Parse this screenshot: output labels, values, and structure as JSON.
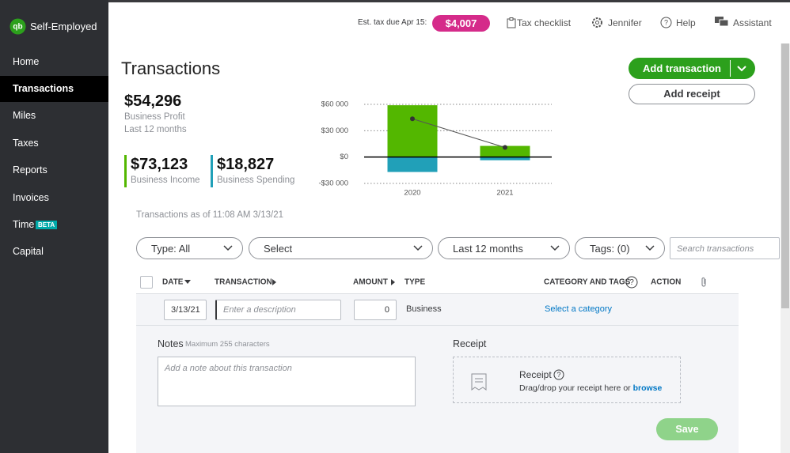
{
  "app": {
    "name": "Self-Employed",
    "nav": [
      "Home",
      "Transactions",
      "Miles",
      "Taxes",
      "Reports",
      "Invoices",
      "Time",
      "Capital"
    ],
    "badge": "BETA"
  },
  "topbar": {
    "tax_label": "Est. tax due Apr 15:",
    "tax_amount": "$4,007",
    "checklist": "Tax checklist",
    "user": "Jennifer",
    "help": "Help",
    "assistant": "Assistant"
  },
  "page": {
    "title": "Transactions",
    "add_transaction": "Add transaction",
    "add_receipt": "Add receipt"
  },
  "summary": {
    "profit": "$54,296",
    "period": "Last 12 months",
    "income": "$73,123",
    "spending": "$18,827"
  },
  "chart_data": {
    "type": "bar",
    "categories": [
      "2020",
      "2021"
    ],
    "series": [
      {
        "name": "Business Income",
        "color": "#53b700",
        "values": [
          59000,
          12700
        ]
      },
      {
        "name": "Business Spending",
        "color": "#21a0b8",
        "values": [
          -17000,
          -3600
        ]
      },
      {
        "name": "Business Profit",
        "type": "line",
        "color": "#555555",
        "values": [
          43600,
          10900
        ]
      }
    ],
    "ylim": [
      -30000,
      60000
    ],
    "yticks": [
      {
        "value": -30000,
        "label": "-$30 000"
      },
      {
        "value": 0,
        "label": "$0"
      },
      {
        "value": 30000,
        "label": "$30 000"
      },
      {
        "value": 60000,
        "label": "$60 000"
      }
    ],
    "grid": true
  },
  "as_of": "Transactions as of 11:08 AM 3/13/21",
  "filters": {
    "type": "Type: All",
    "select": "Select",
    "period": "Last 12 months",
    "tags": "Tags: (0)",
    "search": "Search transactions"
  },
  "table": {
    "columns": [
      "DATE",
      "TRANSACTION",
      "AMOUNT",
      "TYPE",
      "CATEGORY AND TAGS",
      "ACTION"
    ],
    "row": {
      "date": "3/13/21",
      "description": "Enter a description",
      "amount": 0,
      "type": "Business",
      "category": "Select a category"
    }
  },
  "form": {
    "notes": "Notes",
    "notes_hint": "Maximum 255 characters",
    "notes_placeholder": "Add a note about this transaction",
    "receipt": "Receipt",
    "receipt_title": "Receipt",
    "receipt_text": "Drag/drop your receipt here or",
    "browse": "browse",
    "save": "Save"
  }
}
